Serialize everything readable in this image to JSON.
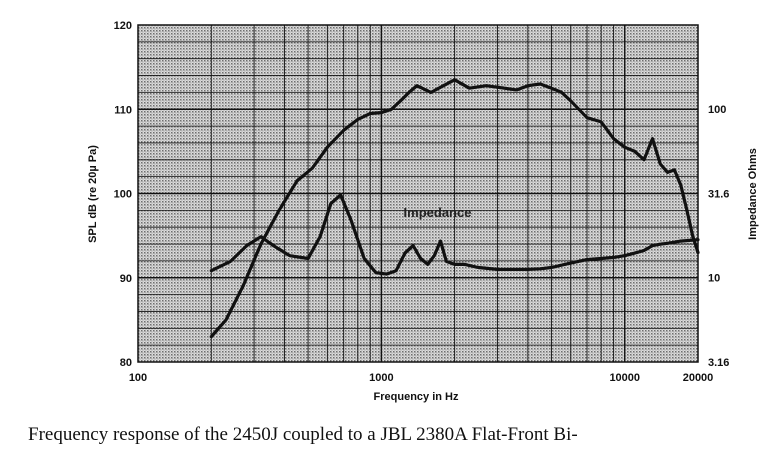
{
  "chart_data": {
    "type": "line",
    "xscale": "log",
    "xlim": [
      100,
      20000
    ],
    "ylim": [
      80,
      120
    ],
    "y2lim": [
      3.16,
      316
    ],
    "y2scale": "log",
    "xlabel": "Frequency in Hz",
    "ylabel": "SPL dB (re 20µ Pa)",
    "y2label": "Impedance Ohms",
    "xticks": [
      {
        "value": 100,
        "label": "100"
      },
      {
        "value": 1000,
        "label": "1000"
      },
      {
        "value": 10000,
        "label": "10000"
      },
      {
        "value": 20000,
        "label": "20000"
      }
    ],
    "yticks": [
      {
        "value": 80,
        "label": "80"
      },
      {
        "value": 90,
        "label": "90"
      },
      {
        "value": 100,
        "label": "100"
      },
      {
        "value": 110,
        "label": "110"
      },
      {
        "value": 120,
        "label": "120"
      }
    ],
    "y2ticks": [
      {
        "value": 3.16,
        "label": "3.16"
      },
      {
        "value": 10,
        "label": "10"
      },
      {
        "value": 31.6,
        "label": "31.6"
      },
      {
        "value": 100,
        "label": "100"
      }
    ],
    "grid": true,
    "annotations": [
      {
        "text": "Impedance",
        "x": 1800,
        "y": 97.8
      }
    ],
    "series": [
      {
        "axis": "left",
        "x": [
          200,
          230,
          270,
          320,
          380,
          450,
          520,
          600,
          700,
          800,
          900,
          1000,
          1100,
          1200,
          1300,
          1400,
          1600,
          1800,
          2000,
          2300,
          2700,
          3200,
          3600,
          4000,
          4500,
          5000,
          5500,
          6000,
          7000,
          8000,
          9000,
          10000,
          11000,
          12000,
          13000,
          14000,
          15000,
          16000,
          17000,
          18000,
          19000,
          20000
        ],
        "y": [
          83,
          85,
          89,
          94,
          98,
          101.5,
          103,
          105.5,
          107.5,
          108.8,
          109.5,
          109.6,
          110,
          111,
          112,
          112.8,
          112,
          112.8,
          113.5,
          112.5,
          112.8,
          112.5,
          112.3,
          112.8,
          113,
          112.5,
          112,
          111,
          109,
          108.5,
          106.5,
          105.5,
          105,
          104,
          106.5,
          103.5,
          102.5,
          102.8,
          101,
          98,
          95,
          93
        ]
      },
      {
        "axis": "right",
        "x": [
          200,
          240,
          280,
          320,
          360,
          420,
          500,
          560,
          620,
          680,
          750,
          850,
          950,
          1050,
          1150,
          1250,
          1350,
          1450,
          1550,
          1650,
          1750,
          1850,
          2000,
          2200,
          2500,
          3000,
          3500,
          4000,
          4500,
          5000,
          6000,
          7000,
          8000,
          9000,
          10000,
          11000,
          12000,
          13000,
          14000,
          15000,
          17000,
          20000
        ],
        "y": [
          11,
          12.5,
          15.5,
          17.5,
          15.5,
          13.5,
          13,
          17.5,
          27.5,
          31,
          22,
          13,
          10.7,
          10.5,
          11,
          14,
          15.5,
          13,
          12,
          13.5,
          16.5,
          12.5,
          12,
          12,
          11.5,
          11.2,
          11.2,
          11.2,
          11.3,
          11.5,
          12.2,
          12.8,
          13,
          13.2,
          13.5,
          14,
          14.5,
          15.5,
          15.8,
          16,
          16.5,
          16.8
        ]
      }
    ]
  },
  "caption": "Frequency response of the 2450J coupled to a JBL 2380A Flat-Front Bi-"
}
